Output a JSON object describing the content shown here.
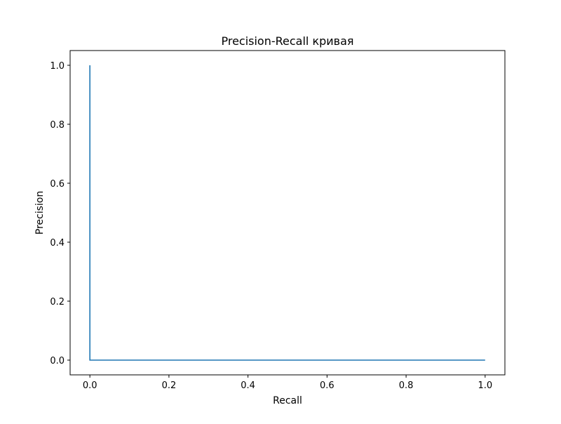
{
  "chart_data": {
    "type": "line",
    "title": "Precision-Recall кривая",
    "xlabel": "Recall",
    "ylabel": "Precision",
    "xlim": [
      -0.05,
      1.05
    ],
    "ylim": [
      -0.05,
      1.05
    ],
    "x_ticks": [
      {
        "value": 0.0,
        "label": "0.0"
      },
      {
        "value": 0.2,
        "label": "0.2"
      },
      {
        "value": 0.4,
        "label": "0.4"
      },
      {
        "value": 0.6,
        "label": "0.6"
      },
      {
        "value": 0.8,
        "label": "0.8"
      },
      {
        "value": 1.0,
        "label": "1.0"
      }
    ],
    "y_ticks": [
      {
        "value": 0.0,
        "label": "0.0"
      },
      {
        "value": 0.2,
        "label": "0.2"
      },
      {
        "value": 0.4,
        "label": "0.4"
      },
      {
        "value": 0.6,
        "label": "0.6"
      },
      {
        "value": 0.8,
        "label": "0.8"
      },
      {
        "value": 1.0,
        "label": "1.0"
      }
    ],
    "grid": false,
    "series": [
      {
        "color": "#1f77b4",
        "points": [
          {
            "x": 0.0,
            "y": 1.0
          },
          {
            "x": 0.0,
            "y": 0.0
          },
          {
            "x": 1.0,
            "y": 0.0
          }
        ]
      }
    ]
  }
}
